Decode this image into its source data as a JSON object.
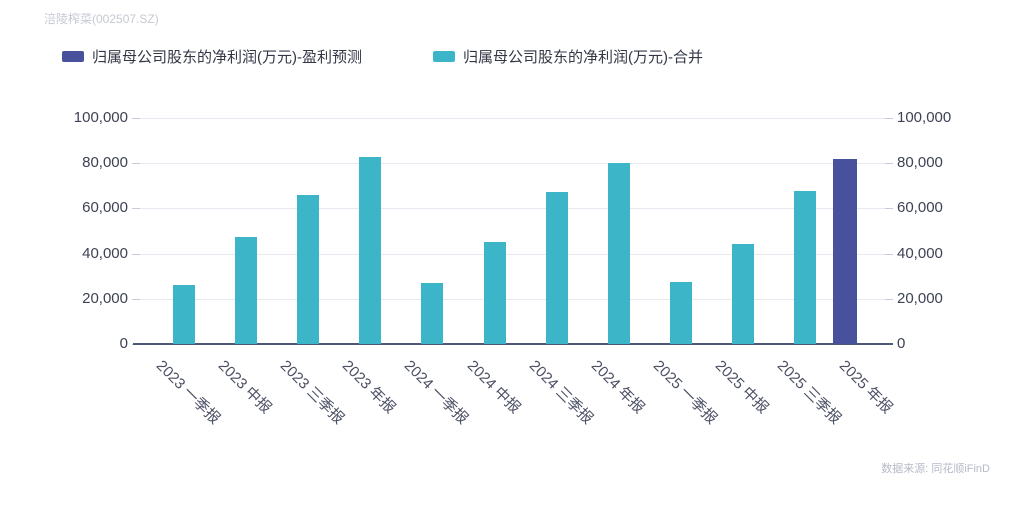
{
  "header": {
    "title": "涪陵榨菜(002507.SZ)"
  },
  "legend": [
    {
      "label": "归属母公司股东的净利润(万元)-盈利预测",
      "color": "#47519c"
    },
    {
      "label": "归属母公司股东的净利润(万元)-合并",
      "color": "#3cb5c9"
    }
  ],
  "footer": {
    "source": "数据来源: 同花顺iFinD"
  },
  "colors": {
    "forecast": "#47519c",
    "merged": "#3cb5c9",
    "gridline": "#e7e9f1",
    "axis_line": "#4d5878",
    "tick": "#c9ccd8"
  },
  "chart_data": {
    "type": "bar",
    "title": "涪陵榨菜(002507.SZ)",
    "categories": [
      "2023 一季报",
      "2023 中报",
      "2023 三季报",
      "2023 年报",
      "2024 一季报",
      "2024 中报",
      "2024 三季报",
      "2024 年报",
      "2025 一季报",
      "2025 中报",
      "2025 三季报",
      "2025 年报"
    ],
    "series": [
      {
        "name": "归属母公司股东的净利润(万元)-盈利预测",
        "color": "#47519c",
        "values": [
          null,
          null,
          null,
          null,
          null,
          null,
          null,
          null,
          null,
          null,
          null,
          81700
        ]
      },
      {
        "name": "归属母公司股东的净利润(万元)-合并",
        "color": "#3cb5c9",
        "values": [
          26300,
          47200,
          66000,
          82600,
          27200,
          45200,
          67400,
          79900,
          27400,
          44200,
          67500,
          null
        ]
      }
    ],
    "xlabel": "",
    "ylabel": "",
    "ylim": [
      0,
      100000
    ],
    "yticks": [
      0,
      20000,
      40000,
      60000,
      80000,
      100000
    ],
    "ytick_labels": [
      "0",
      "20,000",
      "40,000",
      "60,000",
      "80,000",
      "100,000"
    ],
    "y_axis_sides": [
      "left",
      "right"
    ],
    "grid": true,
    "legend_position": "top",
    "x_label_rotation_deg": 45,
    "source": "数据来源: 同花顺iFinD"
  }
}
